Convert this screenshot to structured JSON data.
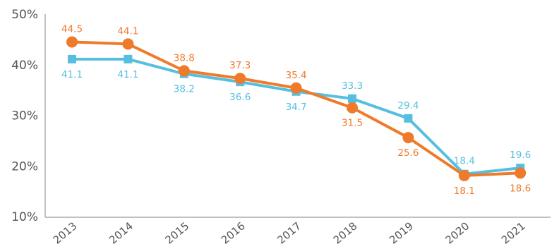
{
  "chart_data": {
    "type": "line",
    "title": "",
    "xlabel": "",
    "ylabel": "",
    "categories": [
      "2013",
      "2014",
      "2015",
      "2016",
      "2017",
      "2018",
      "2019",
      "2020",
      "2021"
    ],
    "y_ticks": [
      "10%",
      "20%",
      "30%",
      "40%",
      "50%"
    ],
    "y_tick_values": [
      10,
      20,
      30,
      40,
      50
    ],
    "ylim": [
      10,
      50
    ],
    "grid": false,
    "legend": "none",
    "series": [
      {
        "marker": "square",
        "color": "#56bfe0",
        "values": [
          41.1,
          41.1,
          38.2,
          36.6,
          34.7,
          33.3,
          29.4,
          18.4,
          19.6
        ],
        "labels": [
          "41.1",
          "41.1",
          "38.2",
          "36.6",
          "34.7",
          "33.3",
          "29.4",
          "18.4",
          "19.6"
        ],
        "label_position": [
          "below",
          "below",
          "below",
          "below",
          "below",
          "above",
          "above",
          "above",
          "above"
        ]
      },
      {
        "marker": "circle",
        "color": "#ef7a2a",
        "values": [
          44.5,
          44.1,
          38.8,
          37.3,
          35.4,
          31.5,
          25.6,
          18.1,
          18.6
        ],
        "labels": [
          "44.5",
          "44.1",
          "38.8",
          "37.3",
          "35.4",
          "31.5",
          "25.6",
          "18.1",
          "18.6"
        ],
        "label_position": [
          "above",
          "above",
          "above",
          "above",
          "above",
          "below",
          "below",
          "below",
          "below"
        ]
      }
    ]
  }
}
